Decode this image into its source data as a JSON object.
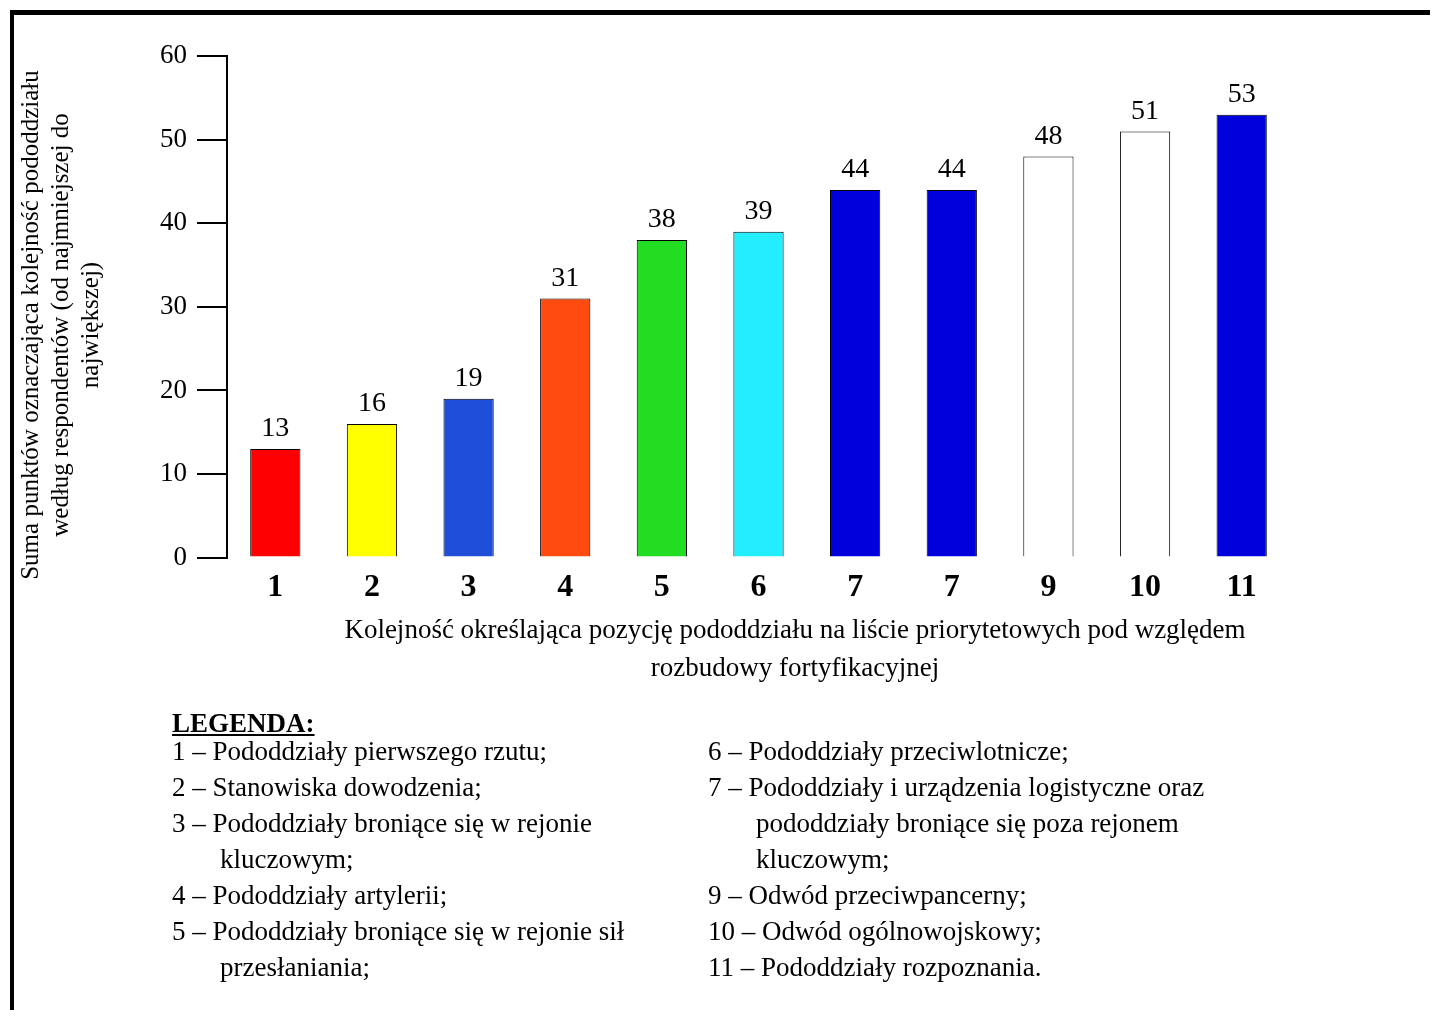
{
  "chart_data": {
    "type": "bar",
    "categories": [
      "1",
      "2",
      "3",
      "4",
      "5",
      "6",
      "7",
      "7",
      "9",
      "10",
      "11"
    ],
    "values": [
      13,
      16,
      19,
      31,
      38,
      39,
      44,
      44,
      48,
      51,
      53
    ],
    "colors": [
      "#ff0000",
      "#ffff00",
      "#1f4fd8",
      "#ff4a10",
      "#22dd22",
      "#22eeff",
      "#0000dd",
      "#0000dd",
      "#ffffff",
      "#ffffff",
      "#0000dd"
    ],
    "ylim": [
      0,
      60
    ],
    "yticks": [
      0,
      10,
      20,
      30,
      40,
      50,
      60
    ],
    "data_labels": true,
    "xlabel": "Kolejność określająca pozycję pododdziału na liście priorytetowych pod względem rozbudowy fortyfikacyjnej",
    "ylabel": "Suma punktów oznaczająca kolejność pododdziału według respondentów (od najmniejszej do największej)",
    "annotations": [
      "LEGENDA:",
      "1 – Pododdziały pierwszego rzutu;",
      "2 – Stanowiska dowodzenia;",
      "3 – Pododdziały broniące się w rejonie kluczowym;",
      "4 – Pododdziały artylerii;",
      "5 – Pododdziały broniące się w rejonie sił przesłaniania;",
      "6 – Pododdziały przeciwlotnicze;",
      "7 – Pododdziały i urządzenia logistyczne oraz pododdziały broniące się poza rejonem kluczowym;",
      "9 – Odwód przeciwpancerny;",
      "10 – Odwód ogólnowojskowy;",
      "11 – Pododdziały rozpoznania."
    ]
  }
}
